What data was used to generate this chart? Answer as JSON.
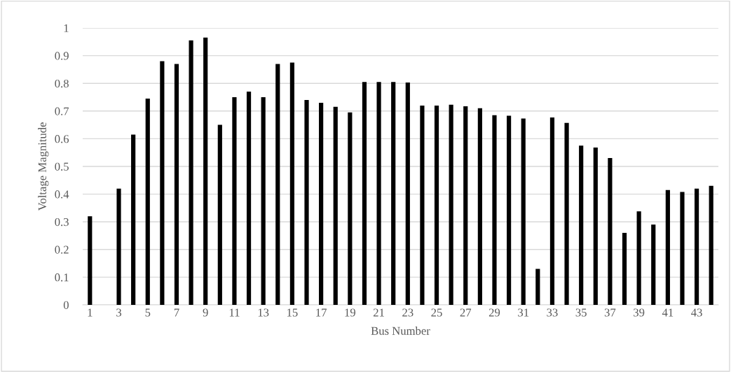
{
  "chart_data": {
    "type": "bar",
    "xlabel": "Bus Number",
    "ylabel": "Voltage Magnitude",
    "categories": [
      "1",
      null,
      "3",
      null,
      "5",
      null,
      "7",
      null,
      "9",
      null,
      "11",
      null,
      "13",
      null,
      "15",
      null,
      "17",
      null,
      "19",
      null,
      "21",
      null,
      "23",
      null,
      "25",
      null,
      "27",
      null,
      "29",
      null,
      "31",
      null,
      "33",
      null,
      "35",
      null,
      "37",
      null,
      "39",
      null,
      "41",
      null,
      "43",
      null
    ],
    "values": [
      0.32,
      0,
      0.42,
      0.615,
      0.745,
      0.88,
      0.87,
      0.955,
      0.965,
      0.65,
      0.75,
      0.77,
      0.75,
      0.87,
      0.875,
      0.74,
      0.73,
      0.715,
      0.695,
      0.805,
      0.805,
      0.805,
      0.803,
      0.72,
      0.72,
      0.723,
      0.717,
      0.71,
      0.685,
      0.683,
      0.673,
      0.13,
      0.677,
      0.657,
      0.575,
      0.568,
      0.53,
      0.26,
      0.338,
      0.29,
      0.415,
      0.408,
      0.42,
      0.43
    ],
    "color": "#000000",
    "ylim": [
      0,
      1
    ],
    "yticks": [
      0,
      0.1,
      0.2,
      0.3,
      0.4,
      0.5,
      0.6,
      0.7,
      0.8,
      0.9,
      1
    ],
    "grid": "y",
    "legend": false
  }
}
